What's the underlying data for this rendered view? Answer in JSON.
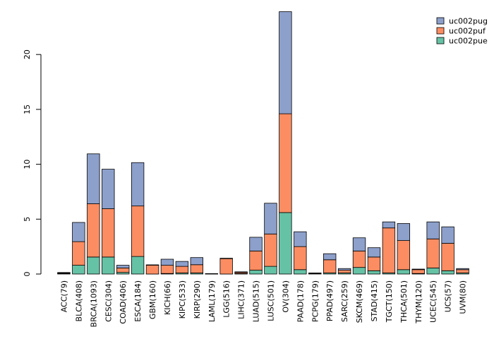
{
  "chart_data": {
    "type": "bar",
    "stacked": true,
    "title": "",
    "xlabel": "",
    "ylabel": "",
    "ylim": [
      0,
      24
    ],
    "yticks": [
      0,
      5,
      10,
      15,
      20
    ],
    "grid": false,
    "legend_position": "top-right",
    "categories": [
      "ACC(79)",
      "BLCA(408)",
      "BRCA(1093)",
      "CESC(304)",
      "COAD(406)",
      "ESCA(184)",
      "GBM(160)",
      "KICH(66)",
      "KIPC(533)",
      "KIRP(290)",
      "LAML(179)",
      "LGG(516)",
      "LIHC(371)",
      "LUAD(515)",
      "LUSC(501)",
      "OV(304)",
      "PAAD(178)",
      "PCPG(179)",
      "PPAD(497)",
      "SARC(259)",
      "SKCM(469)",
      "STAD(415)",
      "TGCT(150)",
      "THCA(501)",
      "THYM(120)",
      "UCEC(545)",
      "UCS(57)",
      "UVM(80)"
    ],
    "series": [
      {
        "name": "uc002pue",
        "color": "#66c2a5",
        "values": [
          0.05,
          0.8,
          1.55,
          1.55,
          0.15,
          1.6,
          0.0,
          0.05,
          0.1,
          0.1,
          0.0,
          0.0,
          0.05,
          0.35,
          0.7,
          5.6,
          0.4,
          0.05,
          0.1,
          0.1,
          0.6,
          0.3,
          0.1,
          0.4,
          0.05,
          0.55,
          0.3,
          0.1
        ]
      },
      {
        "name": "uc002puf",
        "color": "#fc8d62",
        "values": [
          0.05,
          2.15,
          4.85,
          4.4,
          0.4,
          4.6,
          0.8,
          0.75,
          0.6,
          0.75,
          0.0,
          1.4,
          0.1,
          1.75,
          2.95,
          9.0,
          2.1,
          0.0,
          1.2,
          0.25,
          1.5,
          1.25,
          4.1,
          2.65,
          0.35,
          2.65,
          2.5,
          0.3
        ]
      },
      {
        "name": "uc002pug",
        "color": "#8da0cb",
        "values": [
          0.0,
          1.75,
          4.55,
          3.6,
          0.25,
          3.95,
          0.0,
          0.55,
          0.45,
          0.65,
          0.0,
          0.0,
          0.05,
          1.25,
          2.8,
          9.3,
          1.35,
          0.0,
          0.55,
          0.15,
          1.2,
          0.85,
          0.55,
          1.55,
          0.05,
          1.55,
          1.5,
          0.1
        ]
      }
    ]
  }
}
